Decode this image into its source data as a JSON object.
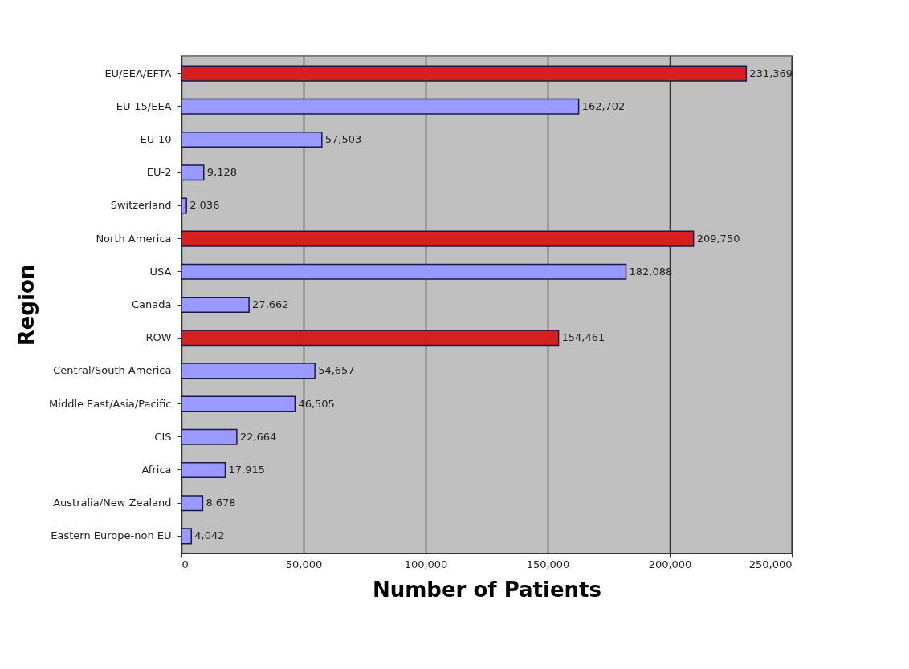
{
  "chart_data": {
    "type": "bar",
    "orientation": "horizontal",
    "xlabel": "Number of Patients",
    "ylabel": "Region",
    "categories": [
      "EU/EEA/EFTA",
      "EU-15/EEA",
      "EU-10",
      "EU-2",
      "Switzerland",
      "North America",
      "USA",
      "Canada",
      "ROW",
      "Central/South America",
      "Middle East/Asia/Pacific",
      "CIS",
      "Africa",
      "Australia/New Zealand",
      "Eastern Europe-non EU"
    ],
    "values": [
      231369,
      162702,
      57503,
      9128,
      2036,
      209750,
      182088,
      27662,
      154461,
      54657,
      46505,
      22664,
      17915,
      8678,
      4042
    ],
    "colors": [
      "#d62020",
      "#9999ff",
      "#9999ff",
      "#9999ff",
      "#9999ff",
      "#d62020",
      "#9999ff",
      "#9999ff",
      "#d62020",
      "#9999ff",
      "#9999ff",
      "#9999ff",
      "#9999ff",
      "#9999ff",
      "#9999ff"
    ],
    "xlim": [
      0,
      250000
    ],
    "xticks": [
      0,
      {
        "value": 50000,
        "label": "50,000"
      },
      {
        "value": 100000,
        "label": "100,000"
      },
      {
        "value": 150000,
        "label": "150,000"
      },
      {
        "value": 200000,
        "label": "200,000"
      },
      {
        "value": 250000,
        "label": "250,000"
      }
    ],
    "value_labels": [
      "231,369",
      "162,702",
      "57,503",
      "9,128",
      "2,036",
      "209,750",
      "182,088",
      "27,662",
      "154,461",
      "54,657",
      "46,505",
      "22,664",
      "17,915",
      "8,678",
      "4,042"
    ],
    "grid": "x"
  }
}
